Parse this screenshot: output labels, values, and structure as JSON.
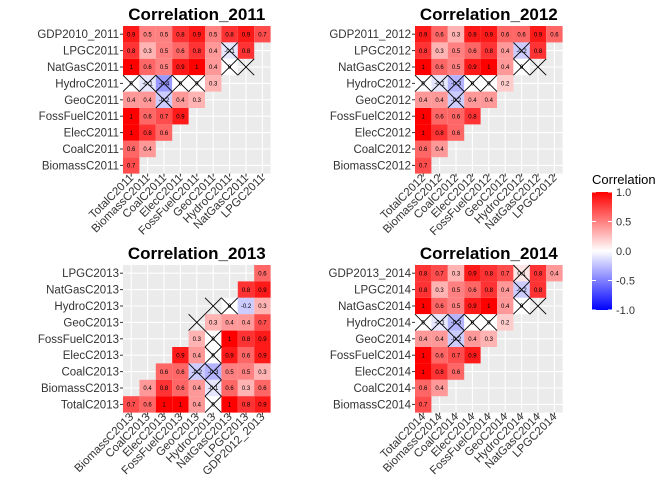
{
  "chart_data": [
    {
      "type": "heatmap",
      "title": "Correlation_2011",
      "y": [
        "GDP2010_2011",
        "LPGC2011",
        "NatGasC2011",
        "HydroC2011",
        "GeoC2011",
        "FossFuelC2011",
        "ElecC2011",
        "CoalC2011",
        "BiomassC2011"
      ],
      "x": [
        "TotalC2011",
        "BiomassC2011",
        "CoalC2011",
        "ElecC2011",
        "FossFuelC2011",
        "GeoC2011",
        "HydroC2011",
        "NatGasC2011",
        "LPGC2011"
      ],
      "values": [
        [
          0.9,
          0.5,
          0.5,
          0.8,
          0.9,
          0.5,
          0.8,
          0.9,
          0.7
        ],
        [
          0.8,
          0.3,
          0.5,
          0.6,
          0.8,
          0.4,
          -0.1,
          0.8,
          null
        ],
        [
          1,
          0.6,
          0.5,
          0.9,
          1,
          0.4,
          0,
          null,
          null
        ],
        [
          0,
          -0.1,
          -0.4,
          0,
          0,
          0.3,
          null,
          null,
          null
        ],
        [
          0.4,
          0.4,
          -0.2,
          0.4,
          0.3,
          null,
          null,
          null,
          null
        ],
        [
          1,
          0.6,
          0.7,
          0.9,
          null,
          null,
          null,
          null,
          null
        ],
        [
          1,
          0.8,
          0.6,
          null,
          null,
          null,
          null,
          null,
          null
        ],
        [
          0.6,
          0.4,
          null,
          null,
          null,
          null,
          null,
          null,
          null
        ],
        [
          0.7,
          null,
          null,
          null,
          null,
          null,
          null,
          null,
          null
        ]
      ],
      "crossed": [
        [
          1,
          6
        ],
        [
          2,
          6
        ],
        [
          2,
          7
        ],
        [
          3,
          0
        ],
        [
          3,
          1
        ],
        [
          3,
          2
        ],
        [
          3,
          3
        ],
        [
          3,
          4
        ],
        [
          4,
          2
        ]
      ]
    },
    {
      "type": "heatmap",
      "title": "Correlation_2012",
      "y": [
        "GDP2011_2012",
        "LPGC2012",
        "NatGasC2012",
        "HydroC2012",
        "GeoC2012",
        "FossFuelC2012",
        "ElecC2012",
        "CoalC2012",
        "BiomassC2012"
      ],
      "x": [
        "TotalC2012",
        "BiomassC2012",
        "CoalC2012",
        "ElecC2012",
        "FossFuelC2012",
        "GeoC2012",
        "HydroC2012",
        "NatGasC2012",
        "LPGC2012"
      ],
      "values": [
        [
          0.9,
          0.6,
          0.3,
          0.9,
          0.9,
          0.6,
          0.6,
          0.9,
          0.6
        ],
        [
          0.8,
          0.3,
          0.5,
          0.6,
          0.8,
          0.4,
          -0.2,
          0.8,
          null
        ],
        [
          1,
          0.6,
          0.5,
          0.9,
          1,
          0.4,
          0,
          null,
          null
        ],
        [
          0,
          -0.1,
          -0.3,
          0,
          0,
          0.2,
          null,
          null,
          null
        ],
        [
          0.4,
          0.4,
          -0.2,
          0.4,
          0.4,
          null,
          null,
          null,
          null
        ],
        [
          1,
          0.6,
          0.6,
          0.8,
          null,
          null,
          null,
          null,
          null
        ],
        [
          1,
          0.8,
          0.6,
          null,
          null,
          null,
          null,
          null,
          null
        ],
        [
          0.6,
          0.4,
          null,
          null,
          null,
          null,
          null,
          null,
          null
        ],
        [
          0.7,
          null,
          null,
          null,
          null,
          null,
          null,
          null,
          null
        ]
      ],
      "crossed": [
        [
          1,
          6
        ],
        [
          2,
          6
        ],
        [
          2,
          7
        ],
        [
          3,
          0
        ],
        [
          3,
          1
        ],
        [
          3,
          2
        ],
        [
          3,
          3
        ],
        [
          3,
          4
        ],
        [
          4,
          2
        ]
      ]
    },
    {
      "type": "heatmap",
      "title": "Correlation_2013",
      "y": [
        "LPGC2013",
        "NatGasC2013",
        "HydroC2013",
        "GeoC2013",
        "FossFuelC2013",
        "ElecC2013",
        "CoalC2013",
        "BiomassC2013",
        "TotalC2013"
      ],
      "x": [
        "BiomassC2013",
        "CoalC2013",
        "ElecC2013",
        "FossFuelC2013",
        "GeoC2013",
        "HydroC2013",
        "NatGasC2013",
        "LPGC2013",
        "GDP2012_2013"
      ],
      "values": [
        [
          null,
          null,
          null,
          null,
          null,
          null,
          null,
          null,
          0.6
        ],
        [
          null,
          null,
          null,
          null,
          null,
          null,
          null,
          0.8,
          0.9
        ],
        [
          null,
          null,
          null,
          null,
          null,
          null,
          0,
          -0.2,
          0.3
        ],
        [
          null,
          null,
          null,
          null,
          null,
          0.3,
          0.4,
          0.4,
          0.7
        ],
        [
          null,
          null,
          null,
          null,
          0.3,
          0,
          1,
          0.8,
          0.9
        ],
        [
          null,
          null,
          null,
          0.9,
          0.4,
          0,
          0.9,
          0.6,
          0.9
        ],
        [
          null,
          null,
          0.6,
          0.6,
          -0.2,
          -0.3,
          0.5,
          0.5,
          0.3
        ],
        [
          null,
          0.4,
          0.8,
          0.6,
          0.4,
          -0.1,
          0.6,
          0.3,
          0.6
        ],
        [
          0.7,
          0.6,
          1,
          1,
          0.4,
          0,
          1,
          0.8,
          0.9
        ]
      ],
      "crossed": [
        [
          2,
          5
        ],
        [
          2,
          6
        ],
        [
          3,
          4
        ],
        [
          4,
          5
        ],
        [
          5,
          5
        ],
        [
          6,
          4
        ],
        [
          6,
          5
        ],
        [
          7,
          5
        ],
        [
          8,
          5
        ]
      ]
    },
    {
      "type": "heatmap",
      "title": "Correlation_2014",
      "y": [
        "GDP2013_2014",
        "LPGC2014",
        "NatGasC2014",
        "HydroC2014",
        "GeoC2014",
        "FossFuelC2014",
        "ElecC2014",
        "CoalC2014",
        "BiomassC2014"
      ],
      "x": [
        "TotalC2014",
        "BiomassC2014",
        "CoalC2014",
        "ElecC2014",
        "FossFuelC2014",
        "GeoC2014",
        "HydroC2014",
        "NatGasC2014",
        "LPGC2014"
      ],
      "values": [
        [
          0.8,
          0.7,
          0.3,
          0.9,
          0.8,
          0.7,
          0.1,
          0.8,
          0.4
        ],
        [
          0.8,
          0.3,
          0.5,
          0.6,
          0.8,
          0.4,
          -0.2,
          0.8,
          null
        ],
        [
          1,
          0.6,
          0.5,
          0.9,
          1,
          0.4,
          0,
          null,
          null
        ],
        [
          0,
          -0.1,
          -0.3,
          0,
          0,
          0.2,
          null,
          null,
          null
        ],
        [
          0.4,
          0.4,
          -0.2,
          0.4,
          0.3,
          null,
          null,
          null,
          null
        ],
        [
          1,
          0.6,
          0.7,
          0.9,
          null,
          null,
          null,
          null,
          null
        ],
        [
          1,
          0.8,
          0.6,
          null,
          null,
          null,
          null,
          null,
          null
        ],
        [
          0.6,
          0.4,
          null,
          null,
          null,
          null,
          null,
          null,
          null
        ],
        [
          0.7,
          null,
          null,
          null,
          null,
          null,
          null,
          null,
          null
        ]
      ],
      "crossed": [
        [
          0,
          6
        ],
        [
          1,
          6
        ],
        [
          2,
          6
        ],
        [
          2,
          7
        ],
        [
          3,
          0
        ],
        [
          3,
          1
        ],
        [
          3,
          2
        ],
        [
          3,
          3
        ],
        [
          3,
          4
        ],
        [
          4,
          2
        ]
      ]
    }
  ],
  "legend": {
    "title": "Correlation",
    "ticks": [
      "1.0",
      "0.5",
      "0.0",
      "-0.5",
      "-1.0"
    ],
    "tick_values": [
      1,
      0.5,
      0,
      -0.5,
      -1
    ],
    "range": [
      -1,
      1
    ],
    "colors": {
      "high": "#FF0000",
      "mid": "#FFFFFF",
      "low": "#0000FF"
    }
  },
  "colors": {
    "panel_bg": "#EBEBEB",
    "grid": "#FFFFFF",
    "cross": "#000000"
  }
}
